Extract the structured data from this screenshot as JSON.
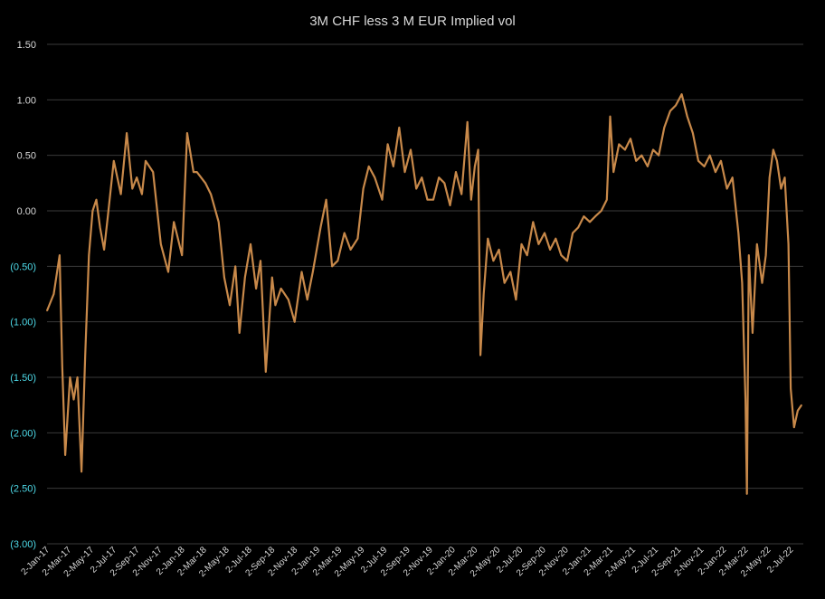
{
  "chart_data": {
    "type": "line",
    "title": "3M CHF less 3 M EUR Implied vol",
    "xlabel": "",
    "ylabel": "",
    "ylim": [
      -3.0,
      1.5
    ],
    "grid": true,
    "legend": "none",
    "y_ticks": [
      {
        "value": 1.5,
        "label": "1.50"
      },
      {
        "value": 1.0,
        "label": "1.00"
      },
      {
        "value": 0.5,
        "label": "0.50"
      },
      {
        "value": 0.0,
        "label": "0.00"
      },
      {
        "value": -0.5,
        "label": "(0.50)"
      },
      {
        "value": -1.0,
        "label": "(1.00)"
      },
      {
        "value": -1.5,
        "label": "(1.50)"
      },
      {
        "value": -2.0,
        "label": "(2.00)"
      },
      {
        "value": -2.5,
        "label": "(2.50)"
      },
      {
        "value": -3.0,
        "label": "(3.00)"
      }
    ],
    "x_tick_labels": [
      "2-Jan-17",
      "2-Mar-17",
      "2-May-17",
      "2-Jul-17",
      "2-Sep-17",
      "2-Nov-17",
      "2-Jan-18",
      "2-Mar-18",
      "2-May-18",
      "2-Jul-18",
      "2-Sep-18",
      "2-Nov-18",
      "2-Jan-19",
      "2-Mar-19",
      "2-May-19",
      "2-Jul-19",
      "2-Sep-19",
      "2-Nov-19",
      "2-Jan-20",
      "2-Mar-20",
      "2-May-20",
      "2-Jul-20",
      "2-Sep-20",
      "2-Nov-20",
      "2-Jan-21",
      "2-Mar-21",
      "2-May-21",
      "2-Jul-21",
      "2-Sep-21",
      "2-Nov-21",
      "2-Jan-22",
      "2-Mar-22",
      "2-May-22",
      "2-Jul-22"
    ],
    "series": [
      {
        "color": "#c8894a",
        "x": [
          "2017-01-02",
          "2017-01-20",
          "2017-02-05",
          "2017-02-12",
          "2017-02-20",
          "2017-03-05",
          "2017-03-15",
          "2017-03-25",
          "2017-04-05",
          "2017-04-15",
          "2017-04-25",
          "2017-05-05",
          "2017-05-15",
          "2017-05-25",
          "2017-06-05",
          "2017-06-15",
          "2017-07-01",
          "2017-07-20",
          "2017-08-05",
          "2017-08-20",
          "2017-09-01",
          "2017-09-15",
          "2017-09-25",
          "2017-10-15",
          "2017-11-05",
          "2017-11-25",
          "2017-12-10",
          "2018-01-01",
          "2018-01-15",
          "2018-02-01",
          "2018-02-10",
          "2018-03-05",
          "2018-03-20",
          "2018-04-10",
          "2018-04-25",
          "2018-05-10",
          "2018-05-25",
          "2018-06-05",
          "2018-06-20",
          "2018-07-05",
          "2018-07-20",
          "2018-08-01",
          "2018-08-15",
          "2018-09-01",
          "2018-09-10",
          "2018-09-25",
          "2018-10-15",
          "2018-11-01",
          "2018-11-20",
          "2018-12-05",
          "2018-12-20",
          "2019-01-10",
          "2019-01-25",
          "2019-02-10",
          "2019-02-25",
          "2019-03-15",
          "2019-04-01",
          "2019-04-20",
          "2019-05-05",
          "2019-05-20",
          "2019-06-05",
          "2019-06-25",
          "2019-07-10",
          "2019-07-25",
          "2019-08-10",
          "2019-08-25",
          "2019-09-10",
          "2019-09-25",
          "2019-10-10",
          "2019-10-25",
          "2019-11-10",
          "2019-11-25",
          "2019-12-10",
          "2019-12-25",
          "2020-01-10",
          "2020-01-25",
          "2020-02-10",
          "2020-02-20",
          "2020-03-01",
          "2020-03-10",
          "2020-03-16",
          "2020-03-25",
          "2020-04-05",
          "2020-04-20",
          "2020-05-05",
          "2020-05-20",
          "2020-06-05",
          "2020-06-20",
          "2020-07-05",
          "2020-07-20",
          "2020-08-05",
          "2020-08-20",
          "2020-09-05",
          "2020-09-20",
          "2020-10-05",
          "2020-10-20",
          "2020-11-05",
          "2020-11-20",
          "2020-12-05",
          "2020-12-20",
          "2021-01-05",
          "2021-01-20",
          "2021-02-05",
          "2021-02-20",
          "2021-03-01",
          "2021-03-10",
          "2021-03-25",
          "2021-04-10",
          "2021-04-25",
          "2021-05-10",
          "2021-05-25",
          "2021-06-10",
          "2021-06-25",
          "2021-07-10",
          "2021-07-25",
          "2021-08-10",
          "2021-08-25",
          "2021-09-10",
          "2021-09-25",
          "2021-10-10",
          "2021-10-25",
          "2021-11-10",
          "2021-11-25",
          "2021-12-10",
          "2021-12-25",
          "2022-01-10",
          "2022-01-25",
          "2022-02-10",
          "2022-02-20",
          "2022-03-01",
          "2022-03-05",
          "2022-03-10",
          "2022-03-20",
          "2022-04-01",
          "2022-04-15",
          "2022-04-25",
          "2022-05-05",
          "2022-05-15",
          "2022-05-25",
          "2022-06-05",
          "2022-06-15",
          "2022-06-25",
          "2022-07-01",
          "2022-07-10",
          "2022-07-20",
          "2022-07-30"
        ],
        "y": [
          -0.9,
          -0.75,
          -0.4,
          -1.4,
          -2.2,
          -1.5,
          -1.7,
          -1.5,
          -2.35,
          -1.3,
          -0.4,
          0.0,
          0.1,
          -0.15,
          -0.35,
          -0.05,
          0.45,
          0.15,
          0.7,
          0.2,
          0.3,
          0.15,
          0.45,
          0.35,
          -0.3,
          -0.55,
          -0.1,
          -0.4,
          0.7,
          0.35,
          0.35,
          0.25,
          0.15,
          -0.1,
          -0.6,
          -0.85,
          -0.5,
          -1.1,
          -0.6,
          -0.3,
          -0.7,
          -0.45,
          -1.45,
          -0.6,
          -0.85,
          -0.7,
          -0.8,
          -1.0,
          -0.55,
          -0.8,
          -0.55,
          -0.15,
          0.1,
          -0.5,
          -0.45,
          -0.2,
          -0.35,
          -0.25,
          0.2,
          0.4,
          0.3,
          0.1,
          0.6,
          0.4,
          0.75,
          0.35,
          0.55,
          0.2,
          0.3,
          0.1,
          0.1,
          0.3,
          0.25,
          0.05,
          0.35,
          0.15,
          0.8,
          0.1,
          0.4,
          0.55,
          -1.3,
          -0.75,
          -0.25,
          -0.45,
          -0.35,
          -0.65,
          -0.55,
          -0.8,
          -0.3,
          -0.4,
          -0.1,
          -0.3,
          -0.2,
          -0.35,
          -0.25,
          -0.4,
          -0.45,
          -0.2,
          -0.15,
          -0.05,
          -0.1,
          -0.05,
          0.0,
          0.1,
          0.85,
          0.35,
          0.6,
          0.55,
          0.65,
          0.45,
          0.5,
          0.4,
          0.55,
          0.5,
          0.75,
          0.9,
          0.95,
          1.05,
          0.85,
          0.7,
          0.45,
          0.4,
          0.5,
          0.35,
          0.45,
          0.2,
          0.3,
          -0.2,
          -0.65,
          -1.7,
          -2.55,
          -0.4,
          -1.1,
          -0.3,
          -0.65,
          -0.4,
          0.3,
          0.55,
          0.45,
          0.2,
          0.3,
          -0.3,
          -1.6,
          -1.95,
          -1.8,
          -1.75
        ]
      }
    ]
  }
}
